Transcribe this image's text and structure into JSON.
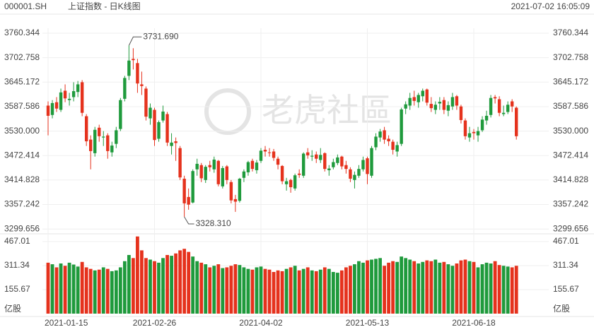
{
  "chart_data": {
    "type": "candlestick",
    "header": {
      "symbol": "000001.SH",
      "name": "上证指数 - 日K线图",
      "time": "2021-07-02 16:05:09"
    },
    "watermark": "老虎社區",
    "categories": [
      "2021-01-15",
      null,
      null,
      null,
      null,
      null,
      null,
      null,
      null,
      null,
      null,
      null,
      null,
      null,
      null,
      null,
      null,
      null,
      null,
      null,
      null,
      null,
      null,
      null,
      null,
      "2021-02-26",
      null,
      null,
      null,
      null,
      null,
      null,
      null,
      null,
      null,
      null,
      null,
      null,
      null,
      null,
      null,
      null,
      null,
      null,
      null,
      null,
      null,
      null,
      null,
      null,
      "2021-04-02",
      null,
      null,
      null,
      null,
      null,
      null,
      null,
      null,
      null,
      null,
      null,
      null,
      null,
      null,
      null,
      null,
      null,
      null,
      null,
      null,
      null,
      null,
      null,
      null,
      "2021-05-13",
      null,
      null,
      null,
      null,
      null,
      null,
      null,
      null,
      null,
      null,
      null,
      null,
      null,
      null,
      null,
      null,
      null,
      null,
      null,
      null,
      null,
      null,
      null,
      null,
      "2021-06-18",
      null,
      null,
      null,
      null,
      null,
      null,
      null,
      null,
      null,
      null
    ],
    "open": [
      3590,
      3568,
      3598,
      3580,
      3625,
      3603,
      3610,
      3622,
      3645,
      3565,
      3510,
      3478,
      3538,
      3515,
      3520,
      3480,
      3500,
      3535,
      3606,
      3660,
      3700,
      3690,
      3640,
      3630,
      3560,
      3580,
      3512,
      3555,
      3570,
      3495,
      3506,
      3490,
      3418,
      3375,
      3362,
      3440,
      3450,
      3415,
      3450,
      3440,
      3460,
      3400,
      3447,
      3410,
      3370,
      3366,
      3420,
      3433,
      3460,
      3438,
      3460,
      3486,
      3480,
      3482,
      3465,
      3448,
      3405,
      3415,
      3395,
      3430,
      3425,
      3480,
      3470,
      3475,
      3462,
      3478,
      3438,
      3445,
      3455,
      3470,
      3450,
      3440,
      3415,
      3425,
      3440,
      3466,
      3425,
      3492,
      3515,
      3532,
      3512,
      3505,
      3482,
      3500,
      3583,
      3590,
      3610,
      3598,
      3612,
      3628,
      3594,
      3580,
      3595,
      3603,
      3578,
      3588,
      3612,
      3588,
      3555,
      3515,
      3528,
      3520,
      3532,
      3555,
      3568,
      3610,
      3605,
      3570,
      3575,
      3600,
      3585
    ],
    "high": [
      3600,
      3603,
      3610,
      3630,
      3640,
      3620,
      3645,
      3648,
      3650,
      3570,
      3520,
      3540,
      3545,
      3530,
      3525,
      3505,
      3540,
      3608,
      3660,
      3731.69,
      3725,
      3700,
      3670,
      3635,
      3595,
      3585,
      3555,
      3590,
      3575,
      3525,
      3515,
      3495,
      3425,
      3395,
      3440,
      3465,
      3455,
      3450,
      3460,
      3470,
      3462,
      3448,
      3450,
      3415,
      3380,
      3420,
      3440,
      3460,
      3465,
      3462,
      3490,
      3495,
      3490,
      3488,
      3470,
      3450,
      3420,
      3418,
      3430,
      3440,
      3480,
      3490,
      3485,
      3482,
      3490,
      3480,
      3450,
      3465,
      3475,
      3472,
      3460,
      3445,
      3435,
      3450,
      3470,
      3470,
      3495,
      3525,
      3535,
      3540,
      3520,
      3510,
      3505,
      3585,
      3600,
      3620,
      3625,
      3620,
      3630,
      3630,
      3610,
      3600,
      3610,
      3610,
      3600,
      3620,
      3615,
      3592,
      3560,
      3540,
      3535,
      3540,
      3565,
      3578,
      3615,
      3615,
      3612,
      3590,
      3600,
      3605,
      3588
    ],
    "low": [
      3520,
      3560,
      3575,
      3575,
      3598,
      3590,
      3600,
      3610,
      3565,
      3495,
      3440,
      3470,
      3505,
      3495,
      3465,
      3470,
      3490,
      3530,
      3600,
      3650,
      3675,
      3620,
      3615,
      3555,
      3545,
      3495,
      3505,
      3550,
      3495,
      3475,
      3460,
      3415,
      3328.31,
      3345,
      3360,
      3425,
      3410,
      3408,
      3435,
      3432,
      3400,
      3395,
      3405,
      3360,
      3340,
      3362,
      3410,
      3425,
      3435,
      3430,
      3455,
      3470,
      3470,
      3460,
      3440,
      3405,
      3390,
      3385,
      3390,
      3420,
      3420,
      3465,
      3460,
      3455,
      3455,
      3435,
      3425,
      3440,
      3450,
      3440,
      3430,
      3410,
      3395,
      3420,
      3435,
      3405,
      3420,
      3485,
      3505,
      3500,
      3495,
      3475,
      3470,
      3495,
      3570,
      3580,
      3590,
      3585,
      3600,
      3590,
      3575,
      3570,
      3580,
      3570,
      3565,
      3580,
      3580,
      3548,
      3510,
      3505,
      3510,
      3505,
      3528,
      3545,
      3562,
      3595,
      3565,
      3565,
      3570,
      3575,
      3510
    ],
    "close": [
      3566,
      3596,
      3583,
      3621,
      3607,
      3606,
      3624,
      3640,
      3573,
      3506,
      3483,
      3533,
      3518,
      3517,
      3483,
      3496,
      3532,
      3603,
      3655,
      3696,
      3697,
      3642,
      3636,
      3564,
      3585,
      3509,
      3551,
      3576,
      3503,
      3503,
      3502,
      3421,
      3360,
      3357,
      3436,
      3453,
      3419,
      3446,
      3445,
      3463,
      3405,
      3443,
      3415,
      3367,
      3364,
      3418,
      3435,
      3457,
      3441,
      3456,
      3484,
      3482,
      3479,
      3467,
      3451,
      3412,
      3412,
      3398,
      3426,
      3427,
      3477,
      3473,
      3472,
      3465,
      3474,
      3441,
      3442,
      3457,
      3468,
      3447,
      3441,
      3418,
      3427,
      3441,
      3462,
      3429,
      3490,
      3517,
      3529,
      3510,
      3506,
      3486,
      3497,
      3581,
      3593,
      3608,
      3601,
      3615,
      3625,
      3597,
      3584,
      3592,
      3599,
      3580,
      3591,
      3610,
      3590,
      3556,
      3518,
      3525,
      3525,
      3530,
      3557,
      3566,
      3608,
      3607,
      3573,
      3573,
      3592,
      3588,
      3518
    ],
    "volume": [
      330,
      320,
      300,
      325,
      310,
      330,
      318,
      305,
      335,
      300,
      290,
      280,
      285,
      300,
      290,
      275,
      280,
      300,
      340,
      380,
      360,
      500,
      410,
      360,
      350,
      340,
      330,
      360,
      380,
      375,
      390,
      410,
      420,
      400,
      370,
      340,
      330,
      320,
      300,
      310,
      320,
      295,
      300,
      310,
      320,
      315,
      300,
      290,
      285,
      300,
      305,
      290,
      285,
      270,
      280,
      275,
      290,
      300,
      310,
      280,
      290,
      300,
      280,
      275,
      285,
      300,
      290,
      270,
      265,
      280,
      300,
      310,
      320,
      340,
      330,
      345,
      350,
      355,
      360,
      310,
      330,
      340,
      335,
      370,
      360,
      350,
      340,
      325,
      335,
      345,
      340,
      350,
      330,
      335,
      320,
      310,
      325,
      345,
      350,
      340,
      335,
      300,
      320,
      330,
      325,
      340,
      315,
      310,
      305,
      300,
      310
    ],
    "max_label": "3731.690",
    "min_label": "3328.310",
    "ylim": [
      3290,
      3772
    ],
    "yticks": [
      3760.344,
      3702.758,
      3645.172,
      3587.586,
      {
        "value": 3530,
        "label": "3530.000"
      },
      3472.414,
      3414.828,
      3357.242,
      3299.656
    ],
    "volume_ylim": [
      0,
      508
    ],
    "volume_yticks": [
      467.01,
      311.34,
      155.67
    ],
    "volume_unit": "亿股",
    "up_color": "#1f9a3c",
    "down_color": "#e5321d",
    "grid": true
  }
}
